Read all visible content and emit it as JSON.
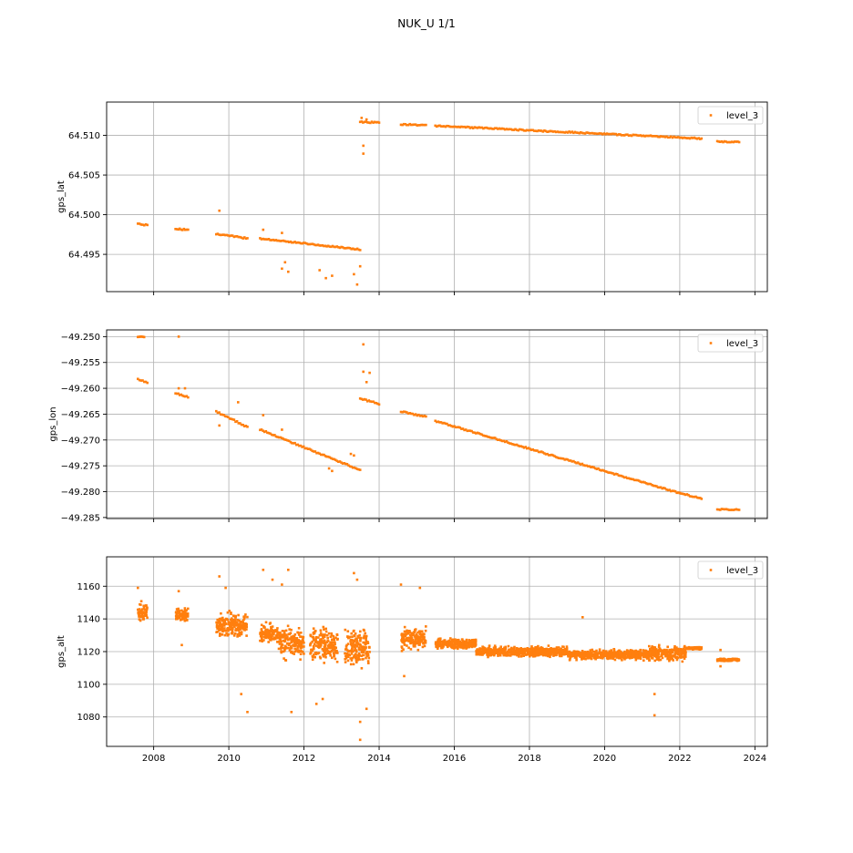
{
  "figure": {
    "title": "NUK_U 1/1"
  },
  "colors": {
    "series": "#ff7f0e",
    "grid": "#b0b0b0",
    "axis": "#000000"
  },
  "chart_data": [
    {
      "type": "scatter",
      "ylabel": "gps_lat",
      "xlabel": "",
      "grid": true,
      "legend_position": "top-right",
      "xlim": [
        "2006-10-01",
        "2024-05-01"
      ],
      "ylim": [
        64.4903,
        64.5142
      ],
      "x_ticks": [
        "2008",
        "2010",
        "2012",
        "2014",
        "2016",
        "2018",
        "2020",
        "2022",
        "2024"
      ],
      "x_tick_labels_visible": false,
      "y_ticks": [
        64.495,
        64.5,
        64.505,
        64.51
      ],
      "y_tick_labels": [
        "64.495",
        "64.500",
        "64.505",
        "64.510"
      ],
      "series": [
        {
          "name": "level_3",
          "segments": [
            {
              "x": [
                "2007-08-01",
                "2007-11-01"
              ],
              "y": [
                64.4988,
                64.4987
              ]
            },
            {
              "x": [
                "2008-08-01",
                "2008-12-01"
              ],
              "y": [
                64.4982,
                64.4981
              ]
            },
            {
              "x": [
                "2009-09-01",
                "2010-07-01"
              ],
              "y": [
                64.4976,
                64.497
              ]
            },
            {
              "x": [
                "2010-11-01",
                "2013-07-01"
              ],
              "y": [
                64.497,
                64.4956
              ]
            },
            {
              "x": [
                "2013-07-01",
                "2014-01-01"
              ],
              "y": [
                64.5117,
                64.5116
              ]
            },
            {
              "x": [
                "2014-08-01",
                "2015-04-01"
              ],
              "y": [
                64.5114,
                64.5113
              ]
            },
            {
              "x": [
                "2015-07-01",
                "2022-08-01"
              ],
              "y": [
                64.5112,
                64.5096
              ]
            },
            {
              "x": [
                "2023-01-01",
                "2023-08-01"
              ],
              "y": [
                64.5092,
                64.5092
              ]
            }
          ],
          "points": [
            {
              "x": "2009-10-01",
              "y": 64.5005
            },
            {
              "x": "2010-12-01",
              "y": 64.4981
            },
            {
              "x": "2011-06-01",
              "y": 64.4977
            },
            {
              "x": "2011-06-01",
              "y": 64.4932
            },
            {
              "x": "2011-07-01",
              "y": 64.494
            },
            {
              "x": "2011-08-01",
              "y": 64.4928
            },
            {
              "x": "2012-06-01",
              "y": 64.493
            },
            {
              "x": "2012-08-01",
              "y": 64.492
            },
            {
              "x": "2012-10-01",
              "y": 64.4923
            },
            {
              "x": "2013-05-01",
              "y": 64.4925
            },
            {
              "x": "2013-06-01",
              "y": 64.4912
            },
            {
              "x": "2013-07-01",
              "y": 64.4935
            },
            {
              "x": "2013-07-15",
              "y": 64.5122
            },
            {
              "x": "2013-08-01",
              "y": 64.5087
            },
            {
              "x": "2013-08-01",
              "y": 64.5077
            },
            {
              "x": "2013-09-01",
              "y": 64.512
            }
          ]
        }
      ]
    },
    {
      "type": "scatter",
      "ylabel": "gps_lon",
      "xlabel": "",
      "grid": true,
      "legend_position": "top-right",
      "xlim": [
        "2006-10-01",
        "2024-05-01"
      ],
      "ylim": [
        -49.2852,
        -49.2487
      ],
      "x_ticks": [
        "2008",
        "2010",
        "2012",
        "2014",
        "2016",
        "2018",
        "2020",
        "2022",
        "2024"
      ],
      "x_tick_labels_visible": false,
      "y_ticks": [
        -49.285,
        -49.28,
        -49.275,
        -49.27,
        -49.265,
        -49.26,
        -49.255,
        -49.25
      ],
      "y_tick_labels": [
        "−49.285",
        "−49.280",
        "−49.275",
        "−49.270",
        "−49.265",
        "−49.260",
        "−49.255",
        "−49.250"
      ],
      "series": [
        {
          "name": "level_3",
          "segments": [
            {
              "x": [
                "2007-08-01",
                "2007-10-01"
              ],
              "y": [
                -49.25,
                -49.25
              ]
            },
            {
              "x": [
                "2007-08-01",
                "2007-11-01"
              ],
              "y": [
                -49.2583,
                -49.2589
              ]
            },
            {
              "x": [
                "2008-08-01",
                "2008-12-01"
              ],
              "y": [
                -49.261,
                -49.2617
              ]
            },
            {
              "x": [
                "2009-09-01",
                "2010-07-01"
              ],
              "y": [
                -49.2645,
                -49.2675
              ]
            },
            {
              "x": [
                "2010-11-01",
                "2013-07-01"
              ],
              "y": [
                -49.268,
                -49.2758
              ]
            },
            {
              "x": [
                "2013-07-01",
                "2014-01-01"
              ],
              "y": [
                -49.262,
                -49.263
              ]
            },
            {
              "x": [
                "2014-08-01",
                "2015-04-01"
              ],
              "y": [
                -49.2645,
                -49.2655
              ]
            },
            {
              "x": [
                "2015-07-01",
                "2022-01-01"
              ],
              "y": [
                -49.2663,
                -49.2803
              ]
            },
            {
              "x": [
                "2022-01-01",
                "2022-08-01"
              ],
              "y": [
                -49.2803,
                -49.2813
              ]
            },
            {
              "x": [
                "2023-01-01",
                "2023-08-01"
              ],
              "y": [
                -49.2834,
                -49.2835
              ]
            }
          ],
          "points": [
            {
              "x": "2008-09-01",
              "y": -49.25
            },
            {
              "x": "2008-09-01",
              "y": -49.26
            },
            {
              "x": "2008-11-01",
              "y": -49.26
            },
            {
              "x": "2009-10-01",
              "y": -49.2672
            },
            {
              "x": "2010-04-01",
              "y": -49.2627
            },
            {
              "x": "2010-12-01",
              "y": -49.2652
            },
            {
              "x": "2011-06-01",
              "y": -49.268
            },
            {
              "x": "2012-09-01",
              "y": -49.2755
            },
            {
              "x": "2012-10-01",
              "y": -49.276
            },
            {
              "x": "2013-04-01",
              "y": -49.2727
            },
            {
              "x": "2013-05-01",
              "y": -49.273
            },
            {
              "x": "2013-08-01",
              "y": -49.2515
            },
            {
              "x": "2013-08-01",
              "y": -49.2568
            },
            {
              "x": "2013-09-01",
              "y": -49.2588
            },
            {
              "x": "2013-10-01",
              "y": -49.257
            }
          ]
        }
      ]
    },
    {
      "type": "scatter",
      "ylabel": "gps_alt",
      "xlabel": "",
      "grid": true,
      "legend_position": "top-right",
      "xlim": [
        "2006-10-01",
        "2024-05-01"
      ],
      "ylim": [
        1062,
        1178
      ],
      "x_ticks": [
        "2008",
        "2010",
        "2012",
        "2014",
        "2016",
        "2018",
        "2020",
        "2022",
        "2024"
      ],
      "x_tick_labels_visible": true,
      "y_ticks": [
        1080,
        1100,
        1120,
        1140,
        1160
      ],
      "y_tick_labels": [
        "1080",
        "1100",
        "1120",
        "1140",
        "1160"
      ],
      "series": [
        {
          "name": "level_3",
          "clusters": [
            {
              "x": [
                "2007-08-01",
                "2007-11-01"
              ],
              "center": 1144,
              "spread": 7
            },
            {
              "x": [
                "2008-08-01",
                "2008-12-01"
              ],
              "center": 1143,
              "spread": 6
            },
            {
              "x": [
                "2009-09-01",
                "2010-07-01"
              ],
              "center": 1136,
              "spread": 10
            },
            {
              "x": [
                "2010-11-01",
                "2011-05-01"
              ],
              "center": 1131,
              "spread": 8
            },
            {
              "x": [
                "2011-05-01",
                "2012-01-01"
              ],
              "center": 1126,
              "spread": 13
            },
            {
              "x": [
                "2012-03-01",
                "2012-12-01"
              ],
              "center": 1124,
              "spread": 13
            },
            {
              "x": [
                "2013-02-01",
                "2013-10-01"
              ],
              "center": 1122,
              "spread": 15
            },
            {
              "x": [
                "2014-08-01",
                "2015-04-01"
              ],
              "center": 1128,
              "spread": 9
            },
            {
              "x": [
                "2015-07-01",
                "2016-08-01"
              ],
              "center": 1125,
              "spread": 4
            },
            {
              "x": [
                "2016-08-01",
                "2019-01-01"
              ],
              "center": 1120,
              "spread": 4
            },
            {
              "x": [
                "2019-01-01",
                "2021-03-01"
              ],
              "center": 1118,
              "spread": 4
            },
            {
              "x": [
                "2021-03-01",
                "2022-03-01"
              ],
              "center": 1119,
              "spread": 6
            },
            {
              "x": [
                "2022-03-01",
                "2022-08-01"
              ],
              "center": 1122,
              "spread": 1
            },
            {
              "x": [
                "2023-01-01",
                "2023-08-01"
              ],
              "center": 1115,
              "spread": 1
            }
          ],
          "points": [
            {
              "x": "2007-08-01",
              "y": 1159
            },
            {
              "x": "2008-09-01",
              "y": 1157
            },
            {
              "x": "2008-10-01",
              "y": 1124
            },
            {
              "x": "2009-10-01",
              "y": 1166
            },
            {
              "x": "2009-12-01",
              "y": 1159
            },
            {
              "x": "2010-05-01",
              "y": 1094
            },
            {
              "x": "2010-07-01",
              "y": 1083
            },
            {
              "x": "2010-12-01",
              "y": 1170
            },
            {
              "x": "2011-03-01",
              "y": 1164
            },
            {
              "x": "2011-06-01",
              "y": 1161
            },
            {
              "x": "2011-08-01",
              "y": 1170
            },
            {
              "x": "2011-09-01",
              "y": 1083
            },
            {
              "x": "2012-05-01",
              "y": 1088
            },
            {
              "x": "2012-07-01",
              "y": 1091
            },
            {
              "x": "2013-05-01",
              "y": 1168
            },
            {
              "x": "2013-06-01",
              "y": 1164
            },
            {
              "x": "2013-07-01",
              "y": 1077
            },
            {
              "x": "2013-07-01",
              "y": 1066
            },
            {
              "x": "2013-09-01",
              "y": 1085
            },
            {
              "x": "2014-08-01",
              "y": 1161
            },
            {
              "x": "2014-09-01",
              "y": 1105
            },
            {
              "x": "2015-02-01",
              "y": 1159
            },
            {
              "x": "2019-06-01",
              "y": 1141
            },
            {
              "x": "2021-05-01",
              "y": 1081
            },
            {
              "x": "2021-05-01",
              "y": 1094
            },
            {
              "x": "2023-02-01",
              "y": 1121
            },
            {
              "x": "2023-02-01",
              "y": 1111
            }
          ]
        }
      ]
    }
  ]
}
